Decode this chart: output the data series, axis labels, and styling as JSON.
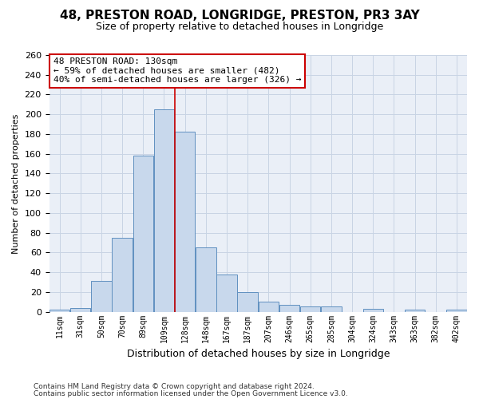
{
  "title1": "48, PRESTON ROAD, LONGRIDGE, PRESTON, PR3 3AY",
  "title2": "Size of property relative to detached houses in Longridge",
  "xlabel": "Distribution of detached houses by size in Longridge",
  "ylabel": "Number of detached properties",
  "footnote1": "Contains HM Land Registry data © Crown copyright and database right 2024.",
  "footnote2": "Contains public sector information licensed under the Open Government Licence v3.0.",
  "annotation_line1": "48 PRESTON ROAD: 130sqm",
  "annotation_line2": "← 59% of detached houses are smaller (482)",
  "annotation_line3": "40% of semi-detached houses are larger (326) →",
  "property_size_idx": 6,
  "bar_color": "#c8d8ec",
  "bar_edge_color": "#6090c0",
  "vline_color": "#cc0000",
  "grid_color": "#c8d4e4",
  "background_color": "#eaeff7",
  "categories": [
    "11sqm",
    "31sqm",
    "50sqm",
    "70sqm",
    "89sqm",
    "109sqm",
    "128sqm",
    "148sqm",
    "167sqm",
    "187sqm",
    "207sqm",
    "246sqm",
    "265sqm",
    "285sqm",
    "304sqm",
    "324sqm",
    "343sqm",
    "363sqm",
    "382sqm",
    "402sqm"
  ],
  "values": [
    2,
    4,
    31,
    75,
    158,
    205,
    182,
    65,
    38,
    20,
    10,
    7,
    5,
    5,
    0,
    3,
    0,
    2,
    0,
    2
  ],
  "ylim": [
    0,
    260
  ],
  "yticks": [
    0,
    20,
    40,
    60,
    80,
    100,
    120,
    140,
    160,
    180,
    200,
    220,
    240,
    260
  ],
  "title1_fontsize": 11,
  "title2_fontsize": 9,
  "ylabel_fontsize": 8,
  "xlabel_fontsize": 9,
  "annotation_fontsize": 8,
  "footnote_fontsize": 6.5
}
